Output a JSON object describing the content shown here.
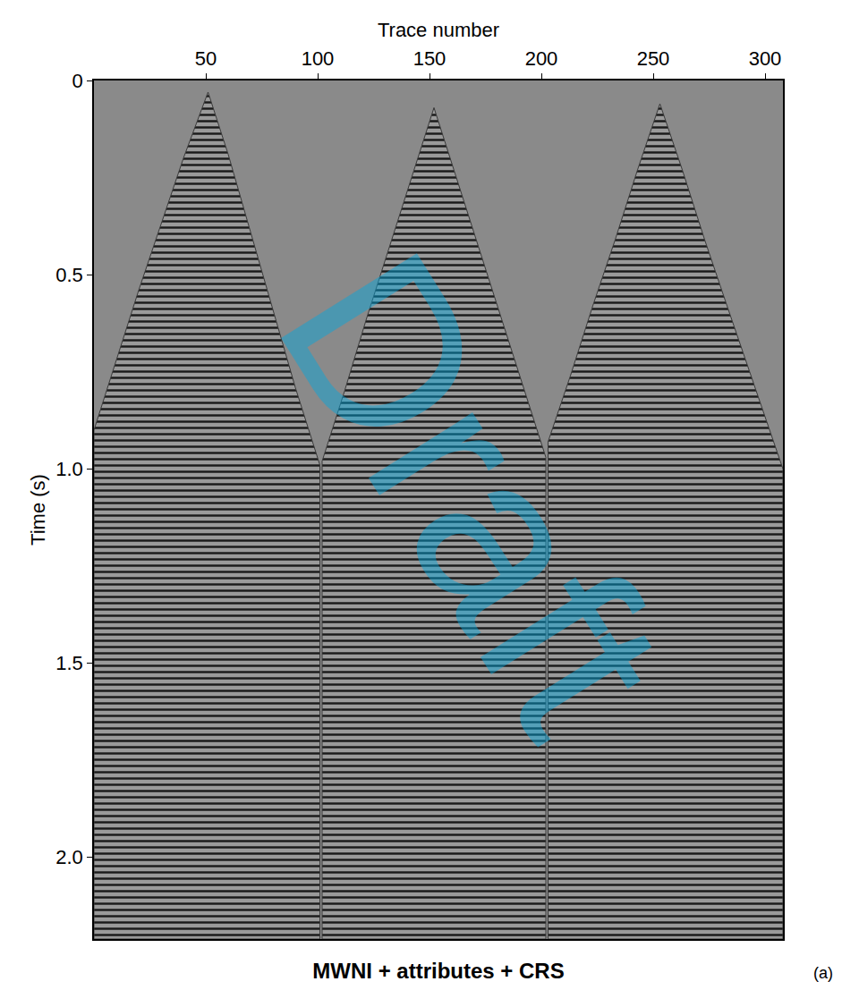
{
  "chart_data": {
    "type": "area",
    "title": "MWNI + attributes + CRS",
    "panel": "(a)",
    "x_label": "Trace number",
    "y_label": "Time (s)",
    "xlim": [
      0,
      308
    ],
    "ylim": [
      0,
      2.21
    ],
    "xticks": [
      50,
      100,
      150,
      200,
      250,
      300
    ],
    "yticks": [
      0,
      0.5,
      {
        "value": 1,
        "label": "1.0"
      },
      1.5,
      {
        "value": 2,
        "label": "2.0"
      }
    ],
    "grid": false,
    "series": [
      {
        "x": [
          0,
          10,
          20,
          30,
          40,
          51,
          60,
          70,
          80,
          90,
          101
        ],
        "values": [
          0.9,
          0.72,
          0.54,
          0.37,
          0.2,
          0.03,
          0.19,
          0.39,
          0.59,
          0.79,
          0.99
        ]
      },
      {
        "x": [
          102,
          112,
          122,
          132,
          142,
          152,
          162,
          172,
          182,
          192,
          202
        ],
        "values": [
          0.98,
          0.8,
          0.61,
          0.43,
          0.25,
          0.07,
          0.25,
          0.43,
          0.61,
          0.79,
          0.97
        ]
      },
      {
        "x": [
          203,
          213,
          223,
          233,
          243,
          253,
          263,
          273,
          283,
          293,
          308
        ],
        "values": [
          0.93,
          0.76,
          0.58,
          0.41,
          0.23,
          0.06,
          0.23,
          0.41,
          0.58,
          0.75,
          1.0
        ]
      }
    ],
    "annotations": [
      {
        "text": "Draft"
      }
    ]
  }
}
